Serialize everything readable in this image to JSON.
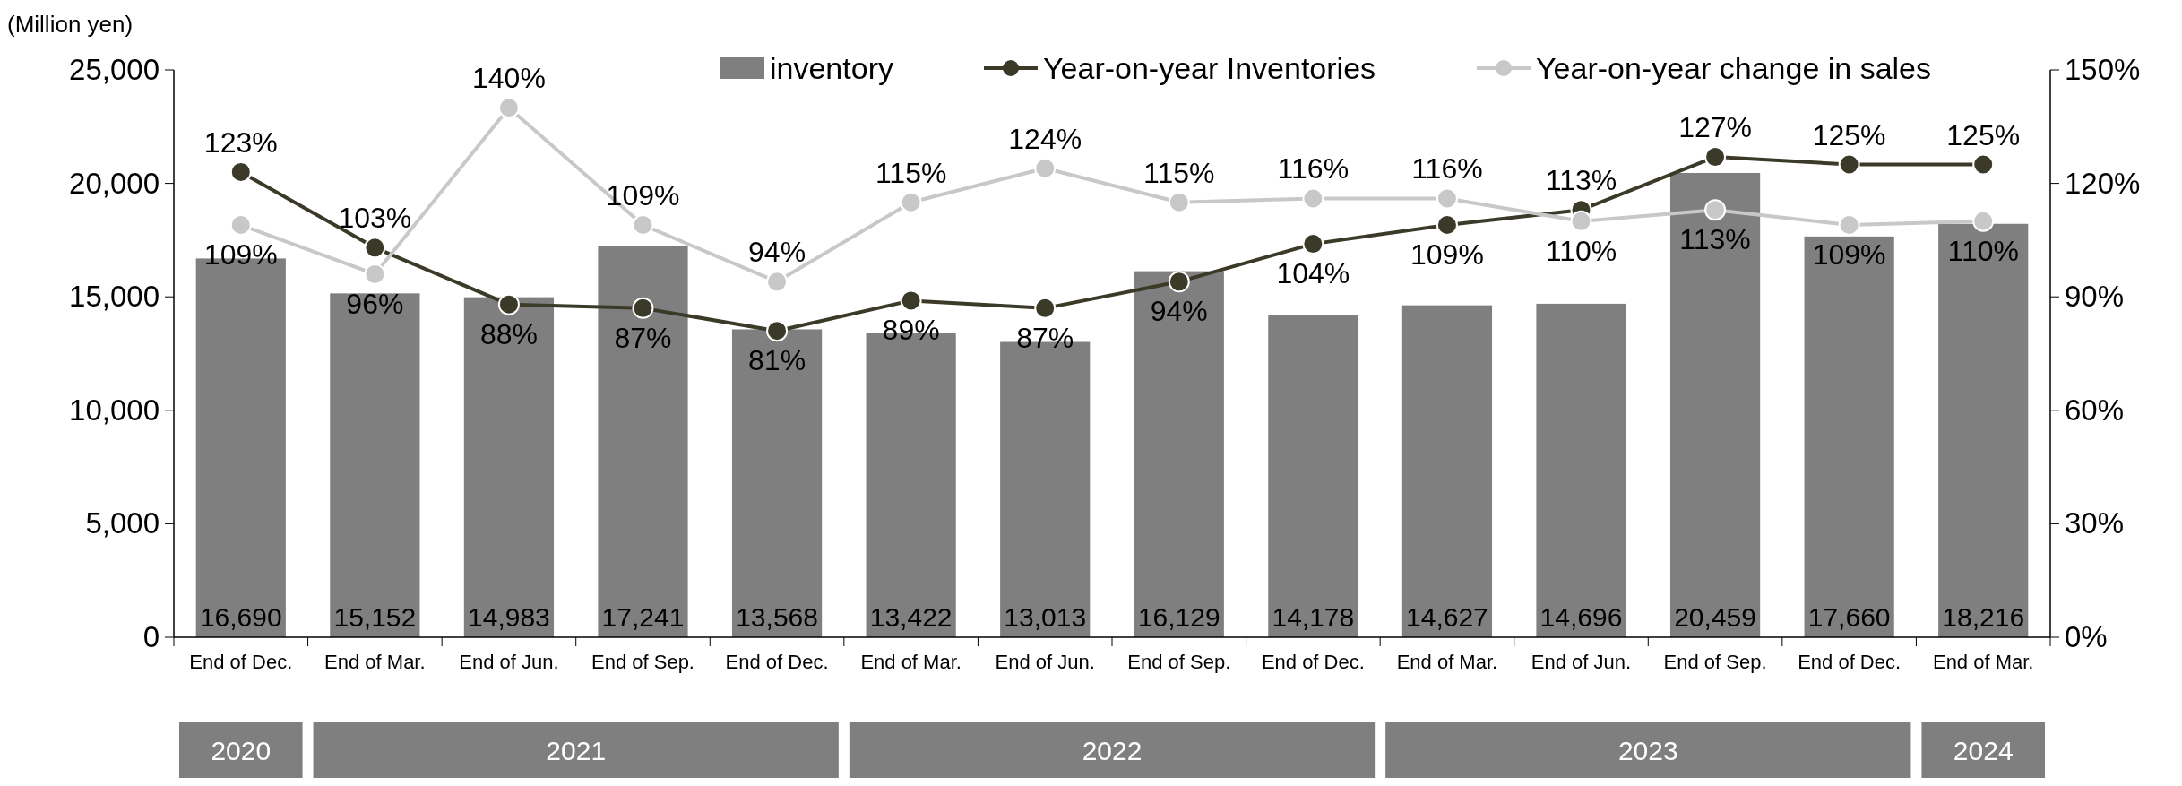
{
  "chart_data": {
    "type": "bar",
    "ylabel": "(Million yen)",
    "categories": [
      "End of Dec.",
      "End of Mar.",
      "End of Jun.",
      "End of Sep.",
      "End of Dec.",
      "End of Mar.",
      "End of Jun.",
      "End of Sep.",
      "End of Dec.",
      "End of Mar.",
      "End of Jun.",
      "End of Sep.",
      "End of Dec.",
      "End of Mar."
    ],
    "series": [
      {
        "name": "inventory",
        "color": "#7f7f7f",
        "values": [
          16690,
          15152,
          14983,
          17241,
          13568,
          13422,
          13013,
          16129,
          14178,
          14627,
          14696,
          20459,
          17660,
          18216
        ],
        "value_labels": [
          "16,690",
          "15,152",
          "14,983",
          "17,241",
          "13,568",
          "13,422",
          "13,013",
          "16,129",
          "14,178",
          "14,627",
          "14,696",
          "20,459",
          "17,660",
          "18,216"
        ]
      },
      {
        "name": "Year-on-year Inventories",
        "type": "line",
        "axis": "y2",
        "color": "#3b3a28",
        "values": [
          123,
          103,
          88,
          87,
          81,
          89,
          87,
          94,
          104,
          109,
          113,
          127,
          125,
          125
        ],
        "value_labels": [
          "123%",
          "103%",
          "88%",
          "87%",
          "81%",
          "89%",
          "87%",
          "94%",
          "104%",
          "109%",
          "113%",
          "127%",
          "125%",
          "125%"
        ]
      },
      {
        "name": "Year-on-year change in sales",
        "type": "line",
        "axis": "y2",
        "color": "#c8c8c8",
        "values": [
          109,
          96,
          140,
          109,
          94,
          115,
          124,
          115,
          116,
          116,
          110,
          113,
          109,
          110
        ],
        "value_labels": [
          "109%",
          "96%",
          "140%",
          "109%",
          "94%",
          "115%",
          "124%",
          "115%",
          "116%",
          "116%",
          "110%",
          "113%",
          "109%",
          "110%"
        ]
      }
    ],
    "ylim": [
      0,
      25000
    ],
    "yticks": [
      {
        "value": 0,
        "label": "0"
      },
      {
        "value": 5000,
        "label": "5,000"
      },
      {
        "value": 10000,
        "label": "10,000"
      },
      {
        "value": 15000,
        "label": "15,000"
      },
      {
        "value": 20000,
        "label": "20,000"
      },
      {
        "value": 25000,
        "label": "25,000"
      }
    ],
    "y2lim": [
      0,
      150
    ],
    "y2ticks": [
      {
        "value": 0,
        "label": "0%"
      },
      {
        "value": 30,
        "label": "30%"
      },
      {
        "value": 60,
        "label": "60%"
      },
      {
        "value": 90,
        "label": "90%"
      },
      {
        "value": 120,
        "label": "120%"
      },
      {
        "value": 150,
        "label": "150%"
      }
    ],
    "legend": "top",
    "marker": "circle",
    "grid": false,
    "annotations": [
      "2020",
      "2021",
      "2022",
      "2023",
      "2024"
    ]
  }
}
